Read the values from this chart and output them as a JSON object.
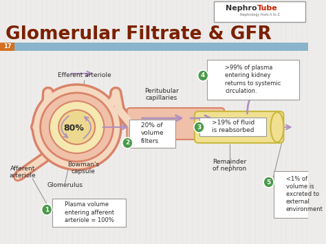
{
  "title": "Glomerular Filtrate & GFR",
  "title_color": "#7B2000",
  "bg_color": "#eeecea",
  "slide_number": "17",
  "slide_bar_color": "#8ab4cc",
  "annotations": {
    "efferent_arteriole": "Efferent arteriole",
    "peritubular": "Peritubular\ncapillaries",
    "bowmans": "Bowman's\ncapsule",
    "glomerulus": "Glomerulus",
    "afferent": "Afferent\narteriole",
    "remainder": "Remainder\nof nephron",
    "pct_80": "80%",
    "pct_20": "20% of\nvolume\nfilters",
    "pct_19": ">19% of fluid\nis reabsorbed",
    "circle1_text": "Plasma volume\nentering afferent\narteriole = 100%",
    "circle4_text": ">99% of plasma\nentering kidney\nreturns to systemic\ncirculation.",
    "circle5_text": "<1% of\nvolume is\nexcreted to\nexternal\nenvironment"
  },
  "colors": {
    "tube_salmon_dark": "#d9836a",
    "tube_salmon_light": "#f0c0a8",
    "tube_peach": "#f5d8c0",
    "glom_yellow_light": "#f5e8b0",
    "glom_yellow_mid": "#edd890",
    "nephron_yellow": "#f0e090",
    "nephron_border": "#c8b840",
    "arrow_purple": "#b090c0",
    "arrow_purple_dark": "#9070a0",
    "green_circle": "#4a9a4a",
    "white": "#ffffff",
    "text_dark": "#2a2a2a",
    "line_gray": "#888888"
  }
}
